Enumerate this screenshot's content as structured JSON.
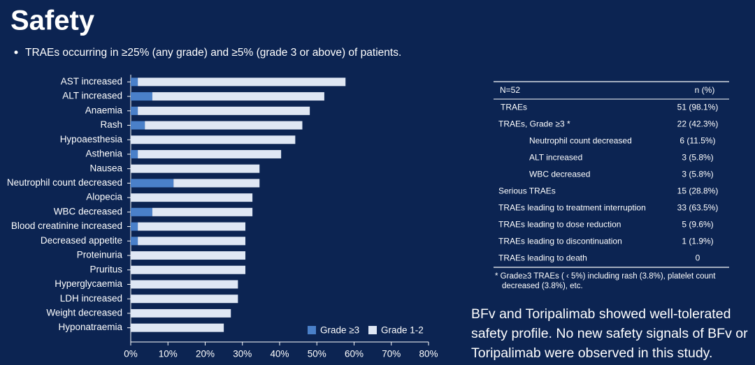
{
  "title": "Safety",
  "bullet": "TRAEs occurring in ≥25% (any grade) and ≥5% (grade 3 or above) of patients.",
  "chart_data": {
    "type": "stacked-bar-horizontal",
    "categories": [
      "AST increased",
      "ALT increased",
      "Anaemia",
      "Rash",
      "Hypoaesthesia",
      "Asthenia",
      "Nausea",
      "Neutrophil count decreased",
      "Alopecia",
      "WBC decreased",
      "Blood creatinine increased",
      "Decreased appetite",
      "Proteinuria",
      "Pruritus",
      "Hyperglycaemia",
      "LDH increased",
      "Weight decreased",
      "Hyponatraemia"
    ],
    "series": [
      {
        "name": "Grade ≥3",
        "color": "#4a80c9",
        "values": [
          1.9,
          5.8,
          1.9,
          3.8,
          0,
          1.9,
          0,
          11.5,
          0,
          5.8,
          1.9,
          1.9,
          0,
          0,
          0,
          0,
          0,
          0
        ]
      },
      {
        "name": "Grade 1-2",
        "color": "#dfe7f4",
        "values": [
          55.8,
          46.2,
          46.2,
          42.3,
          44.2,
          38.5,
          34.6,
          23.1,
          32.7,
          26.9,
          28.9,
          28.9,
          30.8,
          30.8,
          28.8,
          28.8,
          26.9,
          25.0
        ]
      }
    ],
    "xlim": [
      0,
      80
    ],
    "xticks": [
      {
        "value": 0,
        "label": "0%"
      },
      {
        "value": 10,
        "label": "10%"
      },
      {
        "value": 20,
        "label": "20%"
      },
      {
        "value": 30,
        "label": "30%"
      },
      {
        "value": 40,
        "label": "40%"
      },
      {
        "value": 50,
        "label": "50%"
      },
      {
        "value": 60,
        "label": "60%"
      },
      {
        "value": 70,
        "label": "70%"
      },
      {
        "value": 80,
        "label": "80%"
      }
    ],
    "legend": "bottom-right"
  },
  "table": {
    "header": [
      "N=52",
      "n (%)"
    ],
    "rows": [
      [
        "TRAEs",
        "51 (98.1%)"
      ],
      [
        "TRAEs, Grade ≥3 *",
        "22 (42.3%)"
      ],
      [
        "Neutrophil count decreased",
        "6 (11.5%)"
      ],
      [
        "ALT increased",
        "3 (5.8%)"
      ],
      [
        "WBC decreased",
        "3 (5.8%)"
      ],
      [
        "Serious TRAEs",
        "15 (28.8%)"
      ],
      [
        "TRAEs leading to treatment interruption",
        "33 (63.5%)"
      ],
      [
        "TRAEs leading to dose reduction",
        "5 (9.6%)"
      ],
      [
        "TRAEs leading to discontinuation",
        "1 (1.9%)"
      ],
      [
        "TRAEs leading to death",
        "0"
      ]
    ],
    "footnote": [
      "* Grade≥3 TRAEs ( ‹ 5%) including rash (3.8%), platelet count",
      "decreased (3.8%), etc."
    ]
  },
  "conclusion": [
    "BFv and Toripalimab showed well-tolerated",
    "safety profile. No new safety signals of BFv or",
    "Toripalimab were observed in this study."
  ]
}
